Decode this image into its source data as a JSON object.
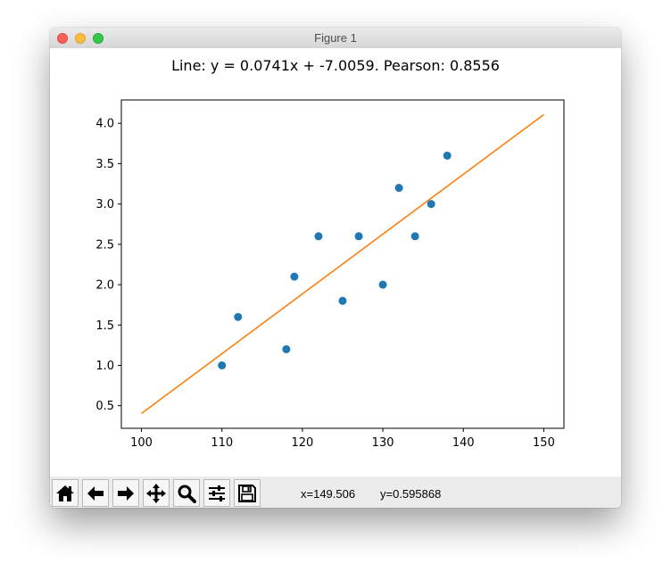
{
  "window": {
    "title": "Figure 1"
  },
  "toolbar": {
    "buttons": [
      {
        "name": "home-button",
        "icon": "home-icon"
      },
      {
        "name": "back-button",
        "icon": "arrow-left-icon"
      },
      {
        "name": "forward-button",
        "icon": "arrow-right-icon"
      },
      {
        "name": "pan-button",
        "icon": "move-icon"
      },
      {
        "name": "zoom-button",
        "icon": "magnifier-icon"
      },
      {
        "name": "subplots-button",
        "icon": "sliders-icon"
      },
      {
        "name": "save-button",
        "icon": "floppy-disk-icon"
      }
    ],
    "x_readout": "x=149.506",
    "y_readout": "y=0.595868"
  },
  "chart_data": {
    "type": "scatter",
    "title": "Line: y = 0.0741x + -7.0059. Pearson: 0.8556",
    "xlabel": "",
    "ylabel": "",
    "xlim": [
      97.5,
      152.5
    ],
    "ylim": [
      0.22,
      4.29
    ],
    "x_ticks": [
      100,
      110,
      120,
      130,
      140,
      150
    ],
    "x_tick_labels": [
      "100",
      "110",
      "120",
      "130",
      "140",
      "150"
    ],
    "y_ticks": [
      0.5,
      1.0,
      1.5,
      2.0,
      2.5,
      3.0,
      3.5,
      4.0
    ],
    "y_tick_labels": [
      "0.5",
      "1.0",
      "1.5",
      "2.0",
      "2.5",
      "3.0",
      "3.5",
      "4.0"
    ],
    "grid": false,
    "points": {
      "color": "#1f77b4",
      "x": [
        110,
        112,
        118,
        119,
        122,
        125,
        127,
        130,
        132,
        134,
        136,
        138
      ],
      "y": [
        1.0,
        1.6,
        1.2,
        2.1,
        2.6,
        1.8,
        2.6,
        2.0,
        3.2,
        2.6,
        3.0,
        3.6
      ]
    },
    "fit_line": {
      "color": "#ff7f0e",
      "slope": 0.0741,
      "intercept": -7.0059,
      "x_range": [
        100,
        150
      ]
    }
  }
}
